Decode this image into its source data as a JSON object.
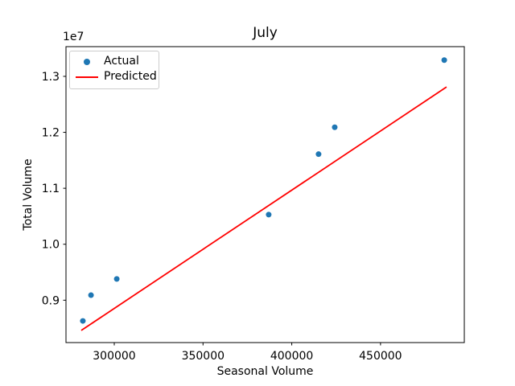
{
  "chart_data": {
    "type": "scatter",
    "title": "July",
    "xlabel": "Seasonal Volume",
    "ylabel": "Total Volume",
    "y_offset_label": "1e7",
    "grid": false,
    "xlim": [
      272800,
      497200
    ],
    "ylim": [
      8243000,
      13531000
    ],
    "x_ticks": {
      "values": [
        300000,
        350000,
        400000,
        450000
      ],
      "labels": [
        "300000",
        "350000",
        "400000",
        "450000"
      ]
    },
    "y_ticks": {
      "values": [
        9000000,
        10000000,
        11000000,
        12000000,
        13000000
      ],
      "labels": [
        "0.9",
        "1.0",
        "1.1",
        "1.2",
        "1.3"
      ]
    },
    "legend": {
      "position": "upper left",
      "entries": [
        {
          "label": "Actual",
          "marker": "dot",
          "color": "#1f77b4"
        },
        {
          "label": "Predicted",
          "marker": "line",
          "color": "#ff0000"
        }
      ]
    },
    "series": [
      {
        "name": "Actual",
        "type": "scatter",
        "color": "#1f77b4",
        "points": [
          [
            282300,
            8630000
          ],
          [
            286900,
            9090000
          ],
          [
            301400,
            9380000
          ],
          [
            387000,
            10530000
          ],
          [
            415100,
            11610000
          ],
          [
            424200,
            12090000
          ],
          [
            485900,
            13290000
          ]
        ]
      },
      {
        "name": "Predicted",
        "type": "line",
        "color": "#ff0000",
        "points": [
          [
            281400,
            8460000
          ],
          [
            487200,
            12810000
          ]
        ]
      }
    ]
  }
}
